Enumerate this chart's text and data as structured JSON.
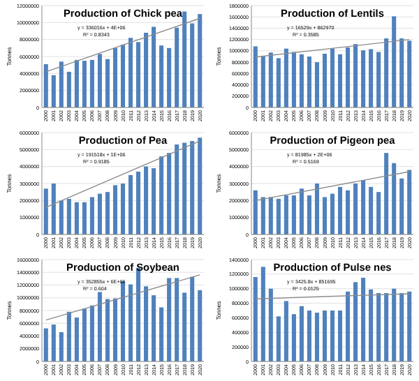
{
  "chart_data": [
    {
      "type": "bar",
      "title": "Production of Chick pea",
      "ylabel": "Tonnes",
      "categories": [
        "2000",
        "2001",
        "2002",
        "2003",
        "2004",
        "2005",
        "2006",
        "2007",
        "2008",
        "2009",
        "2010",
        "2011",
        "2012",
        "2013",
        "2014",
        "2015",
        "2016",
        "2017",
        "2018",
        "2019",
        "2020"
      ],
      "series": [
        {
          "color": "#4f81bd",
          "values": [
            5100000,
            3800000,
            5400000,
            4200000,
            5600000,
            5500000,
            5600000,
            6300000,
            5700000,
            7000000,
            7400000,
            8200000,
            7700000,
            8800000,
            9500000,
            7300000,
            7000000,
            9400000,
            11300000,
            9900000,
            11000000
          ]
        },
        {
          "type": "line",
          "color": "#8c8c8c",
          "values": [
            4200000,
            null,
            null,
            null,
            null,
            null,
            null,
            null,
            null,
            null,
            null,
            null,
            null,
            null,
            null,
            null,
            null,
            null,
            null,
            null,
            10500000
          ]
        }
      ],
      "ylim": [
        0,
        12000000
      ],
      "yticks": [
        0,
        2000000,
        4000000,
        6000000,
        8000000,
        10000000,
        12000000
      ],
      "grid": "y",
      "annotations": [
        "y = 336016x + 4E+06",
        "R² = 0.8343"
      ]
    },
    {
      "type": "bar",
      "title": "Production of Lentils",
      "ylabel": "Tonnes",
      "categories": [
        "2000",
        "2001",
        "2002",
        "2003",
        "2004",
        "2005",
        "2006",
        "2007",
        "2008",
        "2009",
        "2010",
        "2011",
        "2012",
        "2013",
        "2014",
        "2015",
        "2016",
        "2017",
        "2018",
        "2019",
        "2020"
      ],
      "series": [
        {
          "color": "#4f81bd",
          "values": [
            1080000,
            900000,
            970000,
            870000,
            1040000,
            980000,
            940000,
            900000,
            800000,
            950000,
            1040000,
            940000,
            1060000,
            1120000,
            1010000,
            1030000,
            980000,
            1220000,
            1610000,
            1220000,
            1180000
          ]
        },
        {
          "type": "line",
          "color": "#8c8c8c",
          "values": [
            890000,
            null,
            null,
            null,
            null,
            null,
            null,
            null,
            null,
            null,
            null,
            null,
            null,
            null,
            null,
            null,
            null,
            null,
            null,
            null,
            1200000
          ]
        }
      ],
      "ylim": [
        0,
        1800000
      ],
      "yticks": [
        0,
        200000,
        400000,
        600000,
        800000,
        1000000,
        1200000,
        1400000,
        1600000,
        1800000
      ],
      "grid": "y",
      "annotations": [
        "y = 16529x + 862970",
        "R² = 0.3585"
      ]
    },
    {
      "type": "bar",
      "title": "Production of Pea",
      "ylabel": "Tonnes",
      "categories": [
        "2000",
        "2001",
        "2002",
        "2003",
        "2004",
        "2005",
        "2006",
        "2007",
        "2008",
        "2009",
        "2010",
        "2011",
        "2012",
        "2013",
        "2014",
        "2015",
        "2016",
        "2017",
        "2018",
        "2019",
        "2020"
      ],
      "series": [
        {
          "color": "#4f81bd",
          "values": [
            2700000,
            3000000,
            2000000,
            2100000,
            1900000,
            1900000,
            2200000,
            2400000,
            2500000,
            2900000,
            3000000,
            3500000,
            3700000,
            4000000,
            3900000,
            4600000,
            4800000,
            5300000,
            5400000,
            5500000,
            5700000
          ]
        },
        {
          "type": "line",
          "color": "#8c8c8c",
          "values": [
            1600000,
            null,
            null,
            null,
            null,
            null,
            null,
            null,
            null,
            null,
            null,
            null,
            null,
            null,
            null,
            null,
            null,
            null,
            null,
            null,
            5500000
          ]
        }
      ],
      "ylim": [
        0,
        6000000
      ],
      "yticks": [
        0,
        1000000,
        2000000,
        3000000,
        4000000,
        5000000,
        6000000
      ],
      "grid": "y",
      "annotations": [
        "y = 191518x + 1E+06",
        "R² = 0.9185"
      ]
    },
    {
      "type": "bar",
      "title": "Production of Pigeon pea",
      "ylabel": "Tonnes",
      "categories": [
        "2000",
        "2001",
        "2002",
        "2003",
        "2004",
        "2005",
        "2006",
        "2007",
        "2008",
        "2009",
        "2010",
        "2011",
        "2012",
        "2013",
        "2014",
        "2015",
        "2016",
        "2017",
        "2018",
        "2019",
        "2020"
      ],
      "series": [
        {
          "color": "#4f81bd",
          "values": [
            2600000,
            2200000,
            2200000,
            2100000,
            2300000,
            2300000,
            2700000,
            2300000,
            3000000,
            2200000,
            2400000,
            2800000,
            2600000,
            3000000,
            3200000,
            2800000,
            2500000,
            4800000,
            4200000,
            3300000,
            3800000
          ]
        },
        {
          "type": "line",
          "color": "#8c8c8c",
          "values": [
            2000000,
            null,
            null,
            null,
            null,
            null,
            null,
            null,
            null,
            null,
            null,
            null,
            null,
            null,
            null,
            null,
            null,
            null,
            null,
            null,
            3700000
          ]
        }
      ],
      "ylim": [
        0,
        6000000
      ],
      "yticks": [
        0,
        1000000,
        2000000,
        3000000,
        4000000,
        5000000,
        6000000
      ],
      "grid": "y",
      "annotations": [
        "y = 81985x + 2E+06",
        "R² = 0.5169"
      ]
    },
    {
      "type": "bar",
      "title": "Production of Soybean",
      "ylabel": "Tonnes",
      "categories": [
        "2000",
        "2001",
        "2002",
        "2003",
        "2004",
        "2005",
        "2006",
        "2007",
        "2008",
        "2009",
        "2010",
        "2011",
        "2012",
        "2013",
        "2014",
        "2015",
        "2016",
        "2017",
        "2018",
        "2019",
        "2020"
      ],
      "series": [
        {
          "color": "#4f81bd",
          "values": [
            5200000,
            5800000,
            4600000,
            7800000,
            6900000,
            8300000,
            8800000,
            10900000,
            9800000,
            9900000,
            12600000,
            12100000,
            14700000,
            11800000,
            10400000,
            8500000,
            13100000,
            13100000,
            10800000,
            13300000,
            11200000
          ]
        },
        {
          "type": "line",
          "color": "#8c8c8c",
          "values": [
            6500000,
            null,
            null,
            null,
            null,
            null,
            null,
            null,
            null,
            null,
            null,
            null,
            null,
            null,
            null,
            null,
            null,
            null,
            null,
            null,
            13600000
          ]
        }
      ],
      "ylim": [
        0,
        16000000
      ],
      "yticks": [
        0,
        2000000,
        4000000,
        6000000,
        8000000,
        10000000,
        12000000,
        14000000,
        16000000
      ],
      "grid": "y",
      "annotations": [
        "y = 352855x + 6E+06",
        "R² = 0.604"
      ]
    },
    {
      "type": "bar",
      "title": "Production of Pulse nes",
      "ylabel": "Tonnes",
      "categories": [
        "2000",
        "2001",
        "2002",
        "2003",
        "2004",
        "2005",
        "2006",
        "2007",
        "2008",
        "2009",
        "2010",
        "2011",
        "2012",
        "2013",
        "2014",
        "2015",
        "2016",
        "2017",
        "2018",
        "2019",
        "2020"
      ],
      "series": [
        {
          "color": "#4f81bd",
          "values": [
            1160000,
            1300000,
            1000000,
            620000,
            830000,
            650000,
            760000,
            700000,
            670000,
            700000,
            700000,
            700000,
            960000,
            1090000,
            1150000,
            990000,
            940000,
            940000,
            1000000,
            940000,
            960000
          ]
        },
        {
          "type": "line",
          "color": "#8c8c8c",
          "values": [
            860000,
            null,
            null,
            null,
            null,
            null,
            null,
            null,
            null,
            null,
            null,
            null,
            null,
            null,
            null,
            null,
            null,
            null,
            null,
            null,
            930000
          ]
        }
      ],
      "ylim": [
        0,
        1400000
      ],
      "yticks": [
        0,
        200000,
        400000,
        600000,
        800000,
        1000000,
        1200000,
        1400000
      ],
      "grid": "y",
      "annotations": [
        "y = 3425.8x + 851695",
        "R² = 0.0125"
      ]
    }
  ]
}
